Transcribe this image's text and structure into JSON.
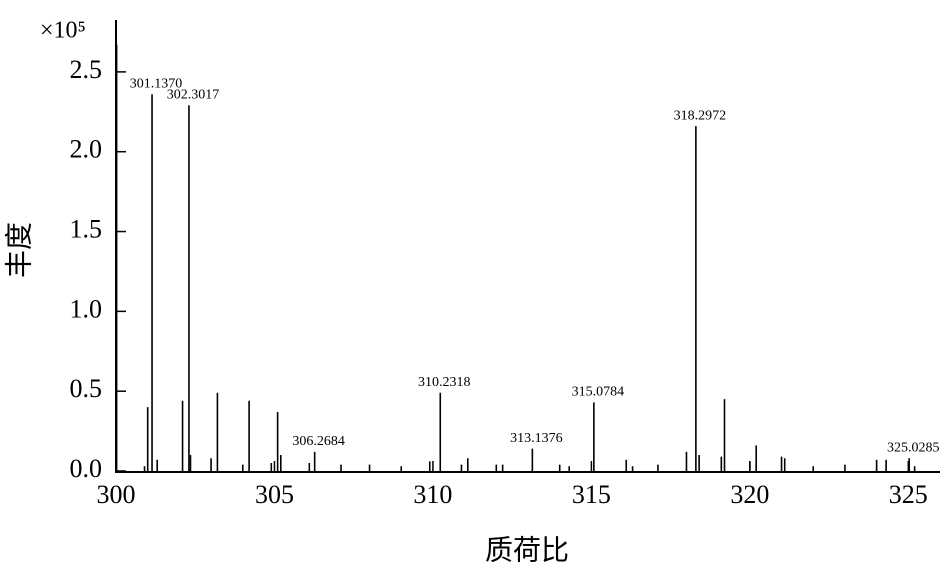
{
  "chart_data": {
    "type": "spectrum",
    "x_label": "质荷比",
    "y_label": "丰度",
    "y_scale_label": "×10⁵",
    "color": "#000000",
    "x": [
      300.02,
      300.9,
      301.0,
      301.137,
      301.3,
      302.1,
      302.3017,
      302.35,
      303.0,
      303.2,
      304.0,
      304.2,
      304.9,
      305.1,
      305.2,
      306.1,
      306.2684,
      307.1,
      308.0,
      309.0,
      309.9,
      310.2318,
      310.9,
      311.1,
      312.0,
      312.2,
      313.1376,
      314.0,
      314.3,
      315.0784,
      316.1,
      316.3,
      317.1,
      318.0,
      318.2972,
      318.4,
      319.1,
      319.2,
      320.0,
      320.2,
      321.0,
      321.1,
      322.0,
      323.0,
      324.0,
      324.3,
      325.0285,
      325.2
    ],
    "values": [
      2.67,
      0.03,
      0.4,
      2.36,
      0.07,
      0.44,
      2.29,
      0.1,
      0.08,
      0.49,
      0.04,
      0.44,
      0.05,
      0.37,
      0.1,
      0.05,
      0.12,
      0.04,
      0.04,
      0.03,
      0.06,
      0.49,
      0.04,
      0.08,
      0.04,
      0.04,
      0.14,
      0.04,
      0.03,
      0.43,
      0.07,
      0.03,
      0.04,
      0.12,
      2.16,
      0.1,
      0.09,
      0.45,
      0.06,
      0.16,
      0.09,
      0.08,
      0.03,
      0.04,
      0.07,
      0.07,
      0.08,
      0.03
    ],
    "x_labels": [
      null,
      null,
      null,
      "301.1370",
      null,
      null,
      "302.3017",
      null,
      null,
      null,
      null,
      null,
      null,
      null,
      null,
      null,
      "306.2684",
      null,
      null,
      null,
      null,
      "310.2318",
      null,
      null,
      null,
      null,
      "313.1376",
      null,
      null,
      "315.0784",
      null,
      null,
      null,
      null,
      "318.2972",
      null,
      null,
      null,
      null,
      null,
      null,
      null,
      null,
      null,
      null,
      null,
      "325.0285",
      null
    ],
    "xlim": [
      300,
      326.0
    ],
    "ylim": [
      0,
      2.8
    ],
    "xticks": [
      300,
      305,
      310,
      315,
      320,
      325
    ],
    "yticks": [
      {
        "value": 0,
        "label": "0.0"
      },
      0.5,
      {
        "value": 1,
        "label": "1.0"
      },
      1.5,
      {
        "value": 2,
        "label": "2.0"
      },
      2.5
    ]
  }
}
